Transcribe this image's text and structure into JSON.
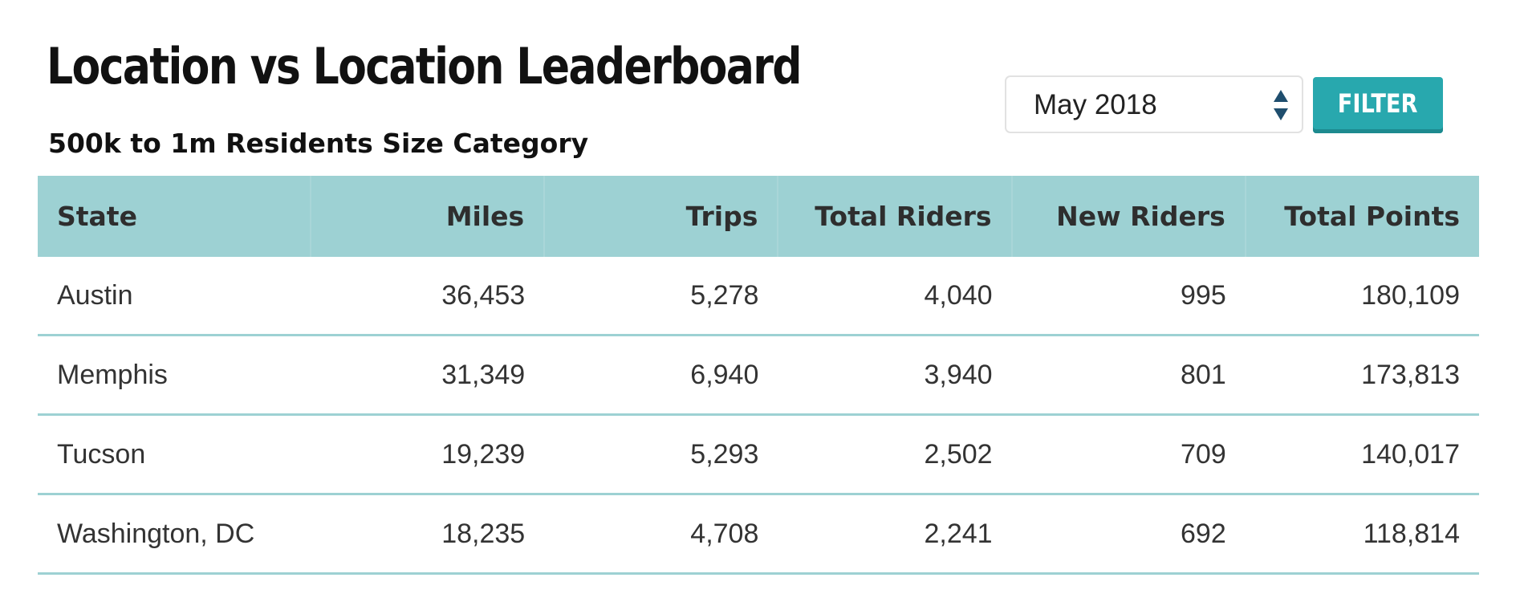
{
  "header": {
    "title": "Location vs Location Leaderboard",
    "subtitle": "500k to 1m Residents Size Category"
  },
  "filter": {
    "selected_month": "May 2018",
    "button_label": "FILTER",
    "accent_color": "#28a8ae"
  },
  "table": {
    "header_color": "#9dd1d3",
    "columns": [
      "State",
      "Miles",
      "Trips",
      "Total Riders",
      "New Riders",
      "Total Points"
    ],
    "rows": [
      [
        "Austin",
        "36,453",
        "5,278",
        "4,040",
        "995",
        "180,109"
      ],
      [
        "Memphis",
        "31,349",
        "6,940",
        "3,940",
        "801",
        "173,813"
      ],
      [
        "Tucson",
        "19,239",
        "5,293",
        "2,502",
        "709",
        "140,017"
      ],
      [
        "Washington, DC",
        "18,235",
        "4,708",
        "2,241",
        "692",
        "118,814"
      ]
    ]
  },
  "icons": {
    "select_arrows": "sort-arrows-icon"
  }
}
